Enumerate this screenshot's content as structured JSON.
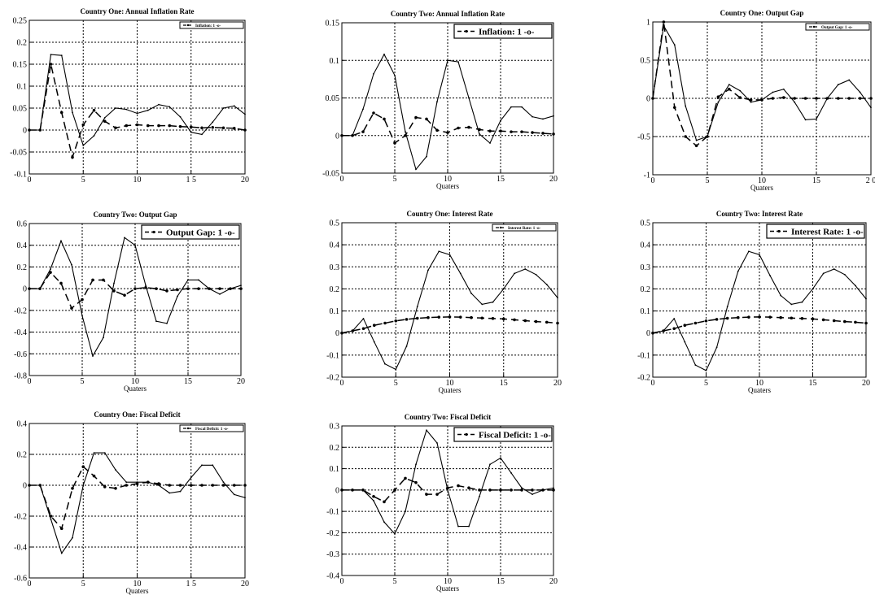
{
  "chart_data": [
    {
      "type": "line",
      "title": "Country One: Annual Inflation Rate",
      "xlabel": "",
      "xlim": [
        0,
        20
      ],
      "ylim": [
        -0.1,
        0.25
      ],
      "xticks": [
        "0",
        "5",
        "10",
        "1 5",
        "20"
      ],
      "yticks": [
        "-0.1",
        "-0.05",
        "0",
        "0.05",
        "0.1",
        "0.15",
        "0.2",
        "0.25"
      ],
      "grid": true,
      "legend_position": "top-right",
      "legend_label": "Inflation:  1  -o-",
      "series": [
        {
          "style": "solid",
          "x": [
            0,
            1,
            2,
            3,
            4,
            5,
            6,
            7,
            8,
            9,
            10,
            11,
            12,
            13,
            14,
            15,
            16,
            17,
            18,
            19,
            20
          ],
          "values": [
            0,
            0,
            0.172,
            0.17,
            0.04,
            -0.035,
            -0.013,
            0.028,
            0.05,
            0.047,
            0.038,
            0.045,
            0.058,
            0.053,
            0.03,
            -0.005,
            -0.01,
            0.018,
            0.05,
            0.055,
            0.036
          ]
        },
        {
          "style": "dash",
          "x": [
            0,
            1,
            2,
            3,
            4,
            5,
            6,
            7,
            8,
            9,
            10,
            11,
            12,
            13,
            14,
            15,
            16,
            17,
            18,
            19,
            20
          ],
          "values": [
            0,
            0,
            0.15,
            0.04,
            -0.062,
            0.012,
            0.045,
            0.02,
            0.005,
            0.01,
            0.012,
            0.01,
            0.01,
            0.01,
            0.008,
            0.007,
            0.005,
            0.006,
            0.005,
            0.004,
            0
          ]
        }
      ]
    },
    {
      "type": "line",
      "title": "Country Two: Annual Inflation Rate",
      "xlabel": "Quaters",
      "xlim": [
        0,
        20
      ],
      "ylim": [
        -0.05,
        0.15
      ],
      "xticks": [
        "0",
        "5",
        "10",
        "15",
        "20"
      ],
      "yticks": [
        "-0.05",
        "0",
        "0.05",
        "0.1",
        "0.15"
      ],
      "grid": true,
      "legend_position": "top-right",
      "legend_label": "Inflation:  1  -o-",
      "series": [
        {
          "style": "solid",
          "x": [
            0,
            1,
            2,
            3,
            4,
            5,
            6,
            7,
            8,
            9,
            10,
            11,
            12,
            13,
            14,
            15,
            16,
            17,
            18,
            19,
            20
          ],
          "values": [
            0,
            0,
            0.035,
            0.082,
            0.108,
            0.08,
            0.005,
            -0.045,
            -0.028,
            0.045,
            0.1,
            0.098,
            0.05,
            0.002,
            -0.01,
            0.02,
            0.038,
            0.038,
            0.025,
            0.022,
            0.026
          ]
        },
        {
          "style": "dash",
          "x": [
            0,
            1,
            2,
            3,
            4,
            5,
            6,
            7,
            8,
            9,
            10,
            11,
            12,
            13,
            14,
            15,
            16,
            17,
            18,
            19,
            20
          ],
          "values": [
            0,
            0,
            0.005,
            0.03,
            0.022,
            -0.01,
            0,
            0.024,
            0.022,
            0.007,
            0.004,
            0.01,
            0.011,
            0.008,
            0.006,
            0.006,
            0.005,
            0.005,
            0.004,
            0.003,
            0.002
          ]
        }
      ]
    },
    {
      "type": "line",
      "title": "Country One: Output Gap",
      "xlabel": "Quaters",
      "xlim": [
        0,
        20
      ],
      "ylim": [
        -1,
        1
      ],
      "xticks": [
        "0",
        "5",
        "10",
        "15",
        "2 0"
      ],
      "yticks": [
        "-1",
        "-0.5",
        "0",
        "0.5",
        "1"
      ],
      "grid": true,
      "legend_position": "top-right",
      "legend_label": "Output Gap:  1  -o-",
      "series": [
        {
          "style": "solid",
          "x": [
            0,
            1,
            2,
            3,
            4,
            5,
            6,
            7,
            8,
            9,
            10,
            11,
            12,
            13,
            14,
            15,
            16,
            17,
            18,
            19,
            20
          ],
          "values": [
            0,
            0.95,
            0.7,
            -0.1,
            -0.55,
            -0.5,
            -0.05,
            0.18,
            0.1,
            -0.05,
            -0.02,
            0.08,
            0.12,
            -0.05,
            -0.28,
            -0.27,
            0,
            0.18,
            0.24,
            0.08,
            -0.12
          ]
        },
        {
          "style": "dash",
          "x": [
            0,
            1,
            2,
            3,
            4,
            5,
            6,
            7,
            8,
            9,
            10,
            11,
            12,
            13,
            14,
            15,
            16,
            17,
            18,
            19,
            20
          ],
          "values": [
            0,
            1,
            -0.12,
            -0.5,
            -0.62,
            -0.5,
            0.02,
            0.12,
            0.01,
            -0.02,
            -0.02,
            0,
            0.01,
            0,
            0,
            0,
            0,
            0,
            0,
            0,
            0
          ]
        }
      ]
    },
    {
      "type": "line",
      "title": "Country Two: Output Gap",
      "xlabel": "Quaters",
      "xlim": [
        0,
        20
      ],
      "ylim": [
        -0.8,
        0.6
      ],
      "xticks": [
        "0",
        "5",
        "10",
        "15",
        "20"
      ],
      "yticks": [
        "-0.8",
        "-0.6",
        "-0.4",
        "-0.2",
        "0",
        "0.2",
        "0.4",
        "0.6"
      ],
      "grid": true,
      "legend_position": "top-right",
      "legend_label": "Output Gap:  1  -o-",
      "series": [
        {
          "style": "solid",
          "x": [
            0,
            1,
            2,
            3,
            4,
            5,
            6,
            7,
            8,
            9,
            10,
            11,
            12,
            13,
            14,
            15,
            16,
            17,
            18,
            19,
            20
          ],
          "values": [
            0,
            0,
            0.18,
            0.44,
            0.22,
            -0.25,
            -0.62,
            -0.45,
            0.05,
            0.47,
            0.4,
            0.03,
            -0.3,
            -0.32,
            -0.07,
            0.08,
            0.08,
            0,
            -0.05,
            0,
            0.03
          ]
        },
        {
          "style": "dash",
          "x": [
            0,
            1,
            2,
            3,
            4,
            5,
            6,
            7,
            8,
            9,
            10,
            11,
            12,
            13,
            14,
            15,
            16,
            17,
            18,
            19,
            20
          ],
          "values": [
            0,
            0,
            0.15,
            0.05,
            -0.18,
            -0.1,
            0.08,
            0.08,
            -0.02,
            -0.06,
            0,
            0.01,
            0,
            -0.02,
            -0.01,
            0,
            0,
            0,
            0,
            0,
            0
          ]
        }
      ]
    },
    {
      "type": "line",
      "title": "Country One: Interest Rate",
      "xlabel": "Quaters",
      "xlim": [
        0,
        20
      ],
      "ylim": [
        -0.2,
        0.5
      ],
      "xticks": [
        "0",
        "5",
        "10",
        "15",
        "20"
      ],
      "yticks": [
        "-0.2",
        "-0.1",
        "0",
        "0.1",
        "0.2",
        "0.3",
        "0.4",
        "0.5"
      ],
      "grid": true,
      "legend_position": "top-right",
      "legend_label": "Interest Rate:  1  -o-",
      "series": [
        {
          "style": "solid",
          "x": [
            0,
            1,
            2,
            3,
            4,
            5,
            6,
            7,
            8,
            9,
            10,
            11,
            12,
            13,
            14,
            15,
            16,
            17,
            18,
            19,
            20
          ],
          "values": [
            0,
            0.01,
            0.065,
            -0.04,
            -0.14,
            -0.165,
            -0.06,
            0.12,
            0.285,
            0.37,
            0.355,
            0.27,
            0.18,
            0.13,
            0.14,
            0.2,
            0.27,
            0.29,
            0.265,
            0.22,
            0.16
          ]
        },
        {
          "style": "dash",
          "x": [
            0,
            1,
            2,
            3,
            4,
            5,
            6,
            7,
            8,
            9,
            10,
            11,
            12,
            13,
            14,
            15,
            16,
            17,
            18,
            19,
            20
          ],
          "values": [
            0,
            0.01,
            0.02,
            0.035,
            0.045,
            0.055,
            0.062,
            0.067,
            0.07,
            0.072,
            0.073,
            0.072,
            0.07,
            0.068,
            0.066,
            0.064,
            0.06,
            0.056,
            0.052,
            0.049,
            0.045
          ]
        }
      ]
    },
    {
      "type": "line",
      "title": "Country Two: Interest Rate",
      "xlabel": "Quaters",
      "xlim": [
        0,
        20
      ],
      "ylim": [
        -0.2,
        0.5
      ],
      "xticks": [
        "0",
        "5",
        "10",
        "15",
        "20"
      ],
      "yticks": [
        "-0.2",
        "-0.1",
        "0",
        "0.1",
        "0.2",
        "0.3",
        "0.4",
        "0.5"
      ],
      "grid": true,
      "legend_position": "top-right",
      "legend_label": "Interest Rate:  1  -o-",
      "series": [
        {
          "style": "solid",
          "x": [
            0,
            1,
            2,
            3,
            4,
            5,
            6,
            7,
            8,
            9,
            10,
            11,
            12,
            13,
            14,
            15,
            16,
            17,
            18,
            19,
            20
          ],
          "values": [
            0,
            0.01,
            0.065,
            -0.04,
            -0.145,
            -0.17,
            -0.065,
            0.12,
            0.28,
            0.37,
            0.355,
            0.26,
            0.17,
            0.13,
            0.14,
            0.2,
            0.27,
            0.29,
            0.265,
            0.215,
            0.155
          ]
        },
        {
          "style": "dash",
          "x": [
            0,
            1,
            2,
            3,
            4,
            5,
            6,
            7,
            8,
            9,
            10,
            11,
            12,
            13,
            14,
            15,
            16,
            17,
            18,
            19,
            20
          ],
          "values": [
            0,
            0.01,
            0.02,
            0.035,
            0.045,
            0.055,
            0.062,
            0.067,
            0.07,
            0.072,
            0.073,
            0.072,
            0.07,
            0.068,
            0.066,
            0.064,
            0.06,
            0.056,
            0.052,
            0.049,
            0.045
          ]
        }
      ]
    },
    {
      "type": "line",
      "title": "Country One: Fiscal Deficit",
      "xlabel": "Quaters",
      "xlim": [
        0,
        20
      ],
      "ylim": [
        -0.6,
        0.4
      ],
      "xticks": [
        "0",
        "5",
        "10",
        "1 5",
        "20"
      ],
      "yticks": [
        "-0.6",
        "-0.4",
        "-0.2",
        "0",
        "0.2",
        "0.4"
      ],
      "grid": true,
      "legend_position": "top-right",
      "legend_label": "Fiscal Deficit:  1  -o-",
      "series": [
        {
          "style": "solid",
          "x": [
            0,
            1,
            2,
            3,
            4,
            5,
            6,
            7,
            8,
            9,
            10,
            11,
            12,
            13,
            14,
            15,
            16,
            17,
            18,
            19,
            20
          ],
          "values": [
            0,
            0,
            -0.22,
            -0.44,
            -0.34,
            0,
            0.21,
            0.21,
            0.1,
            0.02,
            0.02,
            0.02,
            0,
            -0.05,
            -0.04,
            0.05,
            0.13,
            0.13,
            0.02,
            -0.06,
            -0.08
          ]
        },
        {
          "style": "dash",
          "x": [
            0,
            1,
            2,
            3,
            4,
            5,
            6,
            7,
            8,
            9,
            10,
            11,
            12,
            13,
            14,
            15,
            16,
            17,
            18,
            19,
            20
          ],
          "values": [
            0,
            0,
            -0.2,
            -0.28,
            -0.02,
            0.12,
            0.06,
            -0.01,
            -0.02,
            0,
            0.01,
            0.02,
            0.01,
            0,
            0,
            0,
            0,
            0,
            0,
            0,
            0
          ]
        }
      ]
    },
    {
      "type": "line",
      "title": "Country Two: Fiscal Deficit",
      "xlabel": "Quaters",
      "xlim": [
        0,
        20
      ],
      "ylim": [
        -0.4,
        0.3
      ],
      "xticks": [
        "0",
        "5",
        "10",
        "15",
        "20"
      ],
      "yticks": [
        "-0.4",
        "-0.3",
        "-0.2",
        "-0.1",
        "0",
        "0.1",
        "0.2",
        "0.3"
      ],
      "grid": true,
      "legend_position": "top-right",
      "legend_label": "Fiscal Deficit:  1  -o-",
      "series": [
        {
          "style": "solid",
          "x": [
            0,
            1,
            2,
            3,
            4,
            5,
            6,
            7,
            8,
            9,
            10,
            11,
            12,
            13,
            14,
            15,
            16,
            17,
            18,
            19,
            20
          ],
          "values": [
            0,
            0,
            0,
            -0.05,
            -0.15,
            -0.205,
            -0.1,
            0.12,
            0.28,
            0.22,
            0,
            -0.17,
            -0.17,
            -0.03,
            0.12,
            0.15,
            0.08,
            0.01,
            -0.02,
            0,
            0.01
          ]
        },
        {
          "style": "dash",
          "x": [
            0,
            1,
            2,
            3,
            4,
            5,
            6,
            7,
            8,
            9,
            10,
            11,
            12,
            13,
            14,
            15,
            16,
            17,
            18,
            19,
            20
          ],
          "values": [
            0,
            0,
            0,
            -0.03,
            -0.055,
            0,
            0.055,
            0.035,
            -0.02,
            -0.02,
            0.01,
            0.02,
            0.01,
            0,
            0,
            0,
            0,
            0,
            0,
            0,
            0
          ]
        }
      ]
    }
  ]
}
